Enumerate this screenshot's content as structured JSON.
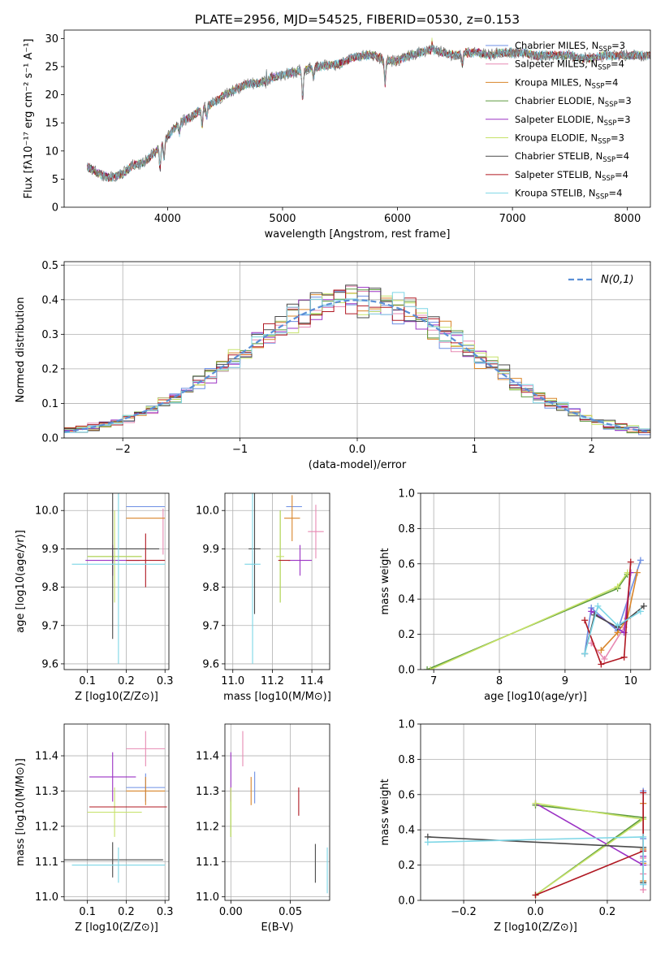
{
  "figure_title": "PLATE=2956, MJD=54525, FIBERID=0530, z=0.153",
  "colors": {
    "chabrier_miles": "#6d8fe4",
    "salpeter_miles": "#e78ab3",
    "kroupa_miles": "#d9852a",
    "chabrier_elodie": "#5d9a3e",
    "salpeter_elodie": "#9b32c4",
    "kroupa_elodie": "#c6e268",
    "chabrier_stelib": "#4a4a4a",
    "salpeter_stelib": "#b01822",
    "kroupa_stelib": "#7dd6e6",
    "gauss": "#5b8fd6"
  },
  "chart_data": [
    {
      "id": "spectrum",
      "type": "line",
      "xlabel": "wavelength [Angstrom, rest frame]",
      "ylabel": "Flux [fλ10⁻¹⁷ erg cm⁻² s⁻¹ A⁻¹]",
      "xlim": [
        3100,
        8200
      ],
      "ylim": [
        0,
        31.5
      ],
      "xticks": [
        4000,
        5000,
        6000,
        7000,
        8000
      ],
      "yticks": [
        0,
        5,
        10,
        15,
        20,
        25,
        30
      ],
      "grid": false,
      "legend_position": "upper-right",
      "legend": [
        "Chabrier MILES, N_SSP=3",
        "Salpeter MILES, N_SSP=4",
        "Kroupa MILES, N_SSP=4",
        "Chabrier ELODIE, N_SSP=3",
        "Salpeter ELODIE, N_SSP=3",
        "Kroupa ELODIE, N_SSP=3",
        "Chabrier STELIB, N_SSP=4",
        "Salpeter STELIB, N_SSP=4",
        "Kroupa STELIB, N_SSP=4"
      ],
      "continuum": {
        "x": [
          3300,
          3400,
          3500,
          3600,
          3700,
          3800,
          3900,
          4000,
          4100,
          4200,
          4300,
          4400,
          4500,
          4600,
          4700,
          4800,
          4900,
          5000,
          5100,
          5200,
          5300,
          5400,
          5500,
          5600,
          5700,
          5800,
          5900,
          6000,
          6100,
          6200,
          6300,
          6400,
          6500,
          6600,
          6700,
          6800,
          6900,
          7000,
          7100,
          7200,
          7300,
          7400,
          7500,
          7600,
          7700,
          7800,
          7900,
          8000,
          8100,
          8200
        ],
        "y": [
          7.2,
          6.0,
          5.2,
          5.8,
          7.5,
          8.0,
          10.0,
          12.5,
          15.0,
          16.0,
          17.5,
          18.5,
          20.0,
          21.0,
          22.0,
          22.0,
          23.0,
          23.5,
          24.0,
          24.5,
          25.0,
          25.2,
          25.5,
          26.5,
          27.0,
          27.0,
          26.0,
          26.0,
          27.0,
          27.5,
          28.0,
          27.5,
          27.0,
          27.5,
          27.5,
          27.0,
          27.5,
          27.5,
          27.5,
          27.0,
          27.0,
          27.0,
          27.0,
          26.5,
          26.5,
          27.0,
          27.0,
          27.0,
          27.0,
          27.0
        ]
      },
      "absorption_lines": [
        {
          "x": 3934,
          "depth": 4
        },
        {
          "x": 3969,
          "depth": 3
        },
        {
          "x": 4102,
          "depth": 2
        },
        {
          "x": 4300,
          "depth": 3
        },
        {
          "x": 4340,
          "depth": 2
        },
        {
          "x": 4861,
          "depth": 2
        },
        {
          "x": 5175,
          "depth": 5
        },
        {
          "x": 5270,
          "depth": 2
        },
        {
          "x": 5892,
          "depth": 4
        },
        {
          "x": 6563,
          "depth": 2
        }
      ],
      "emission_lines": [
        {
          "x": 4861,
          "height": 3
        },
        {
          "x": 6300,
          "height": 1.5
        }
      ]
    },
    {
      "id": "residuals",
      "type": "line",
      "xlabel": "(data-model)/error",
      "ylabel": "Normed distribution",
      "xlim": [
        -2.5,
        2.5
      ],
      "ylim": [
        0,
        0.51
      ],
      "xticks": [
        -2,
        -1,
        0,
        1,
        2
      ],
      "yticks": [
        0.0,
        0.1,
        0.2,
        0.3,
        0.4,
        0.5
      ],
      "grid": true,
      "legend_position": "upper-right",
      "legend": [
        "N(0,1)"
      ],
      "bins": {
        "start": -2.5,
        "width": 0.1,
        "count": 50
      }
    },
    {
      "id": "age_vs_Z",
      "type": "scatter",
      "xlabel": "Z [log10(Z/Z⊙)]",
      "ylabel": "age  [log10(age/yr)]",
      "xlim": [
        0.04,
        0.31
      ],
      "ylim": [
        9.585,
        10.045
      ],
      "xticks": [
        0.1,
        0.2,
        0.3
      ],
      "yticks": [
        9.6,
        9.7,
        9.8,
        9.9,
        10.0
      ],
      "grid": true,
      "points": [
        {
          "model": "chabrier_miles",
          "x": 0.25,
          "xerr": 0.05,
          "y": 10.01,
          "yerr": 0.0
        },
        {
          "model": "salpeter_miles",
          "x": 0.295,
          "xerr": 0.0,
          "y": 9.945,
          "yerr": 0.06
        },
        {
          "model": "kroupa_miles",
          "x": 0.25,
          "xerr": 0.05,
          "y": 9.98,
          "yerr": 0.0
        },
        {
          "model": "chabrier_elodie",
          "x": 0.17,
          "xerr": 0.07,
          "y": 9.88,
          "yerr": 0.0
        },
        {
          "model": "salpeter_elodie",
          "x": 0.165,
          "xerr": 0.07,
          "y": 9.87,
          "yerr": 0.04
        },
        {
          "model": "kroupa_elodie",
          "x": 0.17,
          "xerr": 0.07,
          "y": 9.88,
          "yerr": 0.12
        },
        {
          "model": "chabrier_stelib",
          "x": 0.165,
          "xerr": 0.12,
          "y": 9.9,
          "yerr": 0.235
        },
        {
          "model": "salpeter_stelib",
          "x": 0.25,
          "xerr": 0.05,
          "y": 9.87,
          "yerr": 0.07
        },
        {
          "model": "kroupa_stelib",
          "x": 0.18,
          "xerr": 0.12,
          "y": 9.86,
          "yerr": 0.26
        }
      ]
    },
    {
      "id": "age_vs_mass",
      "type": "scatter",
      "xlabel": "mass [log10(M/M⊙)]",
      "xlim": [
        10.96,
        11.49
      ],
      "ylim": [
        9.585,
        10.045
      ],
      "xticks": [
        11.0,
        11.2,
        11.4
      ],
      "yticks": [
        9.6,
        9.7,
        9.8,
        9.9,
        10.0
      ],
      "grid": true,
      "points": [
        {
          "model": "chabrier_miles",
          "x": 11.31,
          "xerr": 0.04,
          "y": 10.01,
          "yerr": 0.0
        },
        {
          "model": "salpeter_miles",
          "x": 11.42,
          "xerr": 0.04,
          "y": 9.945,
          "yerr": 0.07
        },
        {
          "model": "kroupa_miles",
          "x": 11.3,
          "xerr": 0.04,
          "y": 9.98,
          "yerr": 0.06
        },
        {
          "model": "chabrier_elodie",
          "x": 11.24,
          "xerr": 0.0,
          "y": 9.88,
          "yerr": 0.12
        },
        {
          "model": "salpeter_elodie",
          "x": 11.34,
          "xerr": 0.06,
          "y": 9.87,
          "yerr": 0.04
        },
        {
          "model": "kroupa_elodie",
          "x": 11.24,
          "xerr": 0.02,
          "y": 9.88,
          "yerr": 0.12
        },
        {
          "model": "chabrier_stelib",
          "x": 11.11,
          "xerr": 0.03,
          "y": 9.9,
          "yerr": 0.17
        },
        {
          "model": "salpeter_stelib",
          "x": 11.26,
          "xerr": 0.03,
          "y": 9.87,
          "yerr": 0.0
        },
        {
          "model": "kroupa_stelib",
          "x": 11.1,
          "xerr": 0.04,
          "y": 9.86,
          "yerr": 0.26
        }
      ]
    },
    {
      "id": "massweight_vs_age",
      "type": "line",
      "xlabel": "age  [log10(age/yr)]",
      "ylabel": "mass weight",
      "xlim": [
        6.8,
        10.3
      ],
      "ylim": [
        0,
        1.0
      ],
      "xticks": [
        7,
        8,
        9,
        10
      ],
      "yticks": [
        0.0,
        0.2,
        0.4,
        0.6,
        0.8,
        1.0
      ],
      "grid": true,
      "series": [
        {
          "model": "chabrier_miles",
          "x": [
            9.3,
            9.4,
            9.8,
            10.15
          ],
          "y": [
            0.09,
            0.35,
            0.22,
            0.62
          ]
        },
        {
          "model": "salpeter_miles",
          "x": [
            9.4,
            9.6,
            9.9,
            10.0
          ],
          "y": [
            0.15,
            0.06,
            0.24,
            0.55
          ]
        },
        {
          "model": "kroupa_miles",
          "x": [
            9.55,
            9.8,
            9.95,
            10.1
          ],
          "y": [
            0.11,
            0.21,
            0.29,
            0.55
          ]
        },
        {
          "model": "chabrier_elodie",
          "x": [
            6.9,
            9.8,
            9.95
          ],
          "y": [
            0.0,
            0.46,
            0.54
          ]
        },
        {
          "model": "salpeter_elodie",
          "x": [
            9.4,
            9.9,
            10.0
          ],
          "y": [
            0.33,
            0.21,
            0.55
          ]
        },
        {
          "model": "kroupa_elodie",
          "x": [
            6.95,
            9.8,
            9.95
          ],
          "y": [
            0.0,
            0.47,
            0.55
          ]
        },
        {
          "model": "chabrier_stelib",
          "x": [
            9.3,
            9.45,
            9.8,
            10.2
          ],
          "y": [
            0.09,
            0.31,
            0.24,
            0.36
          ]
        },
        {
          "model": "salpeter_stelib",
          "x": [
            9.3,
            9.55,
            9.9,
            10.0
          ],
          "y": [
            0.28,
            0.03,
            0.07,
            0.61
          ]
        },
        {
          "model": "kroupa_stelib",
          "x": [
            9.3,
            9.5,
            9.8,
            10.15
          ],
          "y": [
            0.09,
            0.36,
            0.25,
            0.33
          ]
        }
      ]
    },
    {
      "id": "mass_vs_Z",
      "type": "scatter",
      "xlabel": "Z [log10(Z/Z⊙)]",
      "ylabel": "mass [log10(M/M⊙)]",
      "xlim": [
        0.04,
        0.31
      ],
      "ylim": [
        10.99,
        11.49
      ],
      "xticks": [
        0.1,
        0.2,
        0.3
      ],
      "yticks": [
        11.0,
        11.1,
        11.2,
        11.3,
        11.4
      ],
      "grid": true,
      "points": [
        {
          "model": "chabrier_miles",
          "x": 0.25,
          "xerr": 0.05,
          "y": 11.31,
          "yerr": 0.04
        },
        {
          "model": "salpeter_miles",
          "x": 0.25,
          "xerr": 0.05,
          "y": 11.42,
          "yerr": 0.05
        },
        {
          "model": "kroupa_miles",
          "x": 0.25,
          "xerr": 0.05,
          "y": 11.3,
          "yerr": 0.04
        },
        {
          "model": "chabrier_elodie",
          "x": 0.17,
          "xerr": 0.07,
          "y": 11.24,
          "yerr": 0.0
        },
        {
          "model": "salpeter_elodie",
          "x": 0.165,
          "xerr": 0.06,
          "y": 11.34,
          "yerr": 0.07
        },
        {
          "model": "kroupa_elodie",
          "x": 0.17,
          "xerr": 0.07,
          "y": 11.24,
          "yerr": 0.07
        },
        {
          "model": "chabrier_stelib",
          "x": 0.165,
          "xerr": 0.13,
          "y": 11.105,
          "yerr": 0.05
        },
        {
          "model": "salpeter_stelib",
          "x": 0.205,
          "xerr": 0.1,
          "y": 11.255,
          "yerr": 0.0
        },
        {
          "model": "kroupa_stelib",
          "x": 0.18,
          "xerr": 0.12,
          "y": 11.09,
          "yerr": 0.05
        }
      ]
    },
    {
      "id": "mass_vs_ebv",
      "type": "scatter",
      "xlabel": "E(B-V)",
      "xlim": [
        -0.005,
        0.083
      ],
      "ylim": [
        10.99,
        11.49
      ],
      "xticks": [
        0.0,
        0.05
      ],
      "yticks": [
        11.0,
        11.1,
        11.2,
        11.3,
        11.4
      ],
      "grid": true,
      "points": [
        {
          "model": "chabrier_miles",
          "x": 0.02,
          "yerr": 0.045,
          "y": 11.31
        },
        {
          "model": "salpeter_miles",
          "x": 0.01,
          "yerr": 0.05,
          "y": 11.42
        },
        {
          "model": "kroupa_miles",
          "x": 0.017,
          "yerr": 0.04,
          "y": 11.3
        },
        {
          "model": "chabrier_elodie",
          "x": 0.0,
          "yerr": 0.07,
          "y": 11.24
        },
        {
          "model": "salpeter_elodie",
          "x": 0.0,
          "yerr": 0.07,
          "y": 11.34
        },
        {
          "model": "kroupa_elodie",
          "x": 0.0,
          "yerr": 0.07,
          "y": 11.24
        },
        {
          "model": "chabrier_stelib",
          "x": 0.071,
          "yerr": 0.055,
          "y": 11.095
        },
        {
          "model": "salpeter_stelib",
          "x": 0.057,
          "yerr": 0.04,
          "y": 11.27
        },
        {
          "model": "kroupa_stelib",
          "x": 0.081,
          "yerr": 0.065,
          "y": 11.075
        }
      ]
    },
    {
      "id": "massweight_vs_Z",
      "type": "line",
      "xlabel": "Z [log10(Z/Z⊙)]",
      "ylabel": "mass weight",
      "xlim": [
        -0.32,
        0.32
      ],
      "ylim": [
        0,
        1.0
      ],
      "xticks": [
        -0.2,
        0.0,
        0.2
      ],
      "yticks": [
        0.0,
        0.2,
        0.4,
        0.6,
        0.8,
        1.0
      ],
      "grid": true,
      "series": [
        {
          "model": "chabrier_miles",
          "x": [
            0.3,
            0.3,
            0.3,
            0.3
          ],
          "y": [
            0.09,
            0.35,
            0.22,
            0.62
          ]
        },
        {
          "model": "salpeter_miles",
          "x": [
            0.3,
            0.3,
            0.3,
            0.3
          ],
          "y": [
            0.15,
            0.06,
            0.24,
            0.55
          ]
        },
        {
          "model": "kroupa_miles",
          "x": [
            0.3,
            0.3,
            0.3,
            0.3
          ],
          "y": [
            0.11,
            0.21,
            0.29,
            0.55
          ]
        },
        {
          "model": "chabrier_elodie",
          "x": [
            0.0,
            0.3,
            0.0
          ],
          "y": [
            0.03,
            0.47,
            0.54
          ]
        },
        {
          "model": "salpeter_elodie",
          "x": [
            0.0,
            0.3,
            0.3
          ],
          "y": [
            0.55,
            0.2,
            0.25
          ]
        },
        {
          "model": "kroupa_elodie",
          "x": [
            0.0,
            0.3,
            0.0
          ],
          "y": [
            0.03,
            0.46,
            0.55
          ]
        },
        {
          "model": "chabrier_stelib",
          "x": [
            -0.3,
            0.3,
            0.3
          ],
          "y": [
            0.36,
            0.3,
            0.1
          ]
        },
        {
          "model": "salpeter_stelib",
          "x": [
            0.0,
            0.3,
            0.3
          ],
          "y": [
            0.03,
            0.28,
            0.61
          ]
        },
        {
          "model": "kroupa_stelib",
          "x": [
            -0.3,
            0.3,
            0.3
          ],
          "y": [
            0.33,
            0.36,
            0.09
          ]
        }
      ]
    }
  ]
}
